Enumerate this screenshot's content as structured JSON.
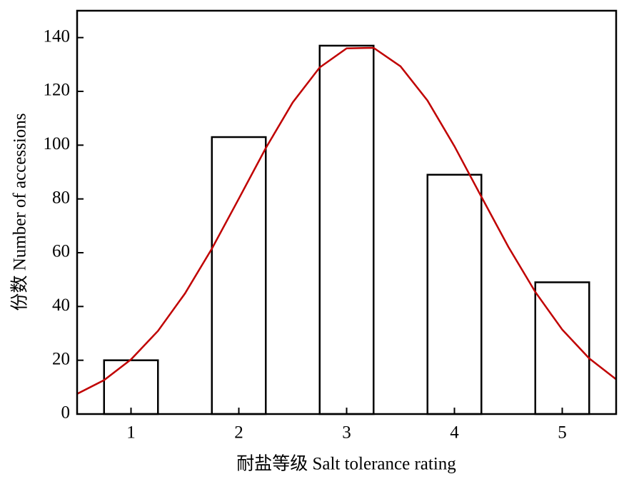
{
  "chart_data": {
    "type": "bar",
    "xlabel": "耐盐等级 Salt tolerance rating",
    "ylabel": "份数 Number of accessions",
    "x": [
      1,
      2,
      3,
      4,
      5
    ],
    "values": [
      20,
      103,
      137,
      89,
      49
    ],
    "color": "#ffffff",
    "edgecolor": "#000000",
    "curve": {
      "color": "#c00000",
      "x": [
        0.5,
        0.75,
        1,
        1.25,
        1.5,
        1.75,
        2,
        2.25,
        2.5,
        2.75,
        3,
        3.25,
        3.5,
        3.75,
        4,
        4.25,
        4.5,
        4.75,
        5,
        5.25,
        5.5
      ],
      "values": [
        7.5,
        12.6,
        20.3,
        30.9,
        44.8,
        61.5,
        80.1,
        98.9,
        115.9,
        128.9,
        136.0,
        136.2,
        129.3,
        116.6,
        99.6,
        80.8,
        62.2,
        45.4,
        31.4,
        20.7,
        12.9
      ]
    },
    "xlim": [
      0.5,
      5.5
    ],
    "xticks": [
      1,
      2,
      3,
      4,
      5
    ],
    "ylim": [
      0,
      150
    ],
    "yticks": [
      0,
      20,
      40,
      60,
      80,
      100,
      120,
      140
    ],
    "grid": false
  }
}
